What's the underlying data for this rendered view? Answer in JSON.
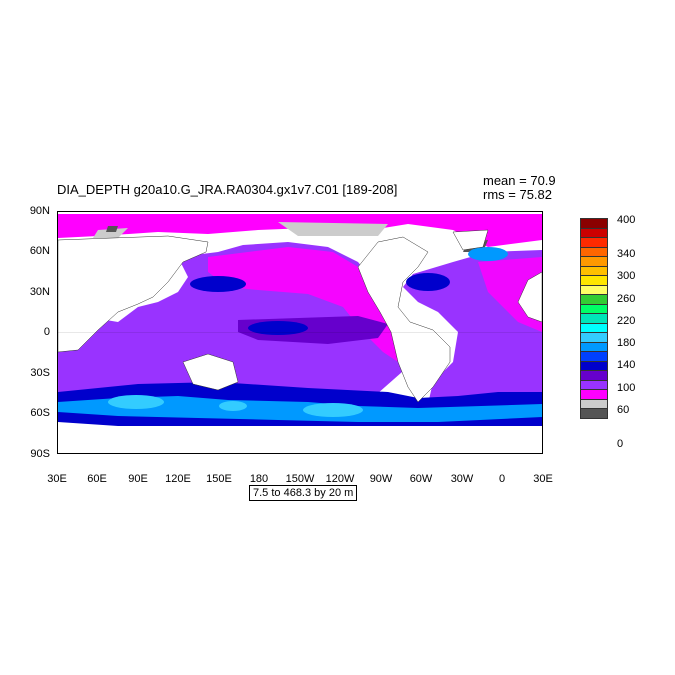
{
  "title": "DIA_DEPTH g20a10.G_JRA.RA0304.gx1v7.C01 [189-208]",
  "stats": {
    "mean": "mean = 70.9",
    "rms": "rms = 75.82"
  },
  "y_ticks": [
    "90N",
    "60N",
    "30N",
    "0",
    "30S",
    "60S",
    "90S"
  ],
  "x_ticks": [
    "30E",
    "60E",
    "90E",
    "120E",
    "150E",
    "180",
    "150W",
    "120W",
    "90W",
    "60W",
    "30W",
    "0",
    "30E"
  ],
  "contour_interval": "7.5 to 468.3 by 20 m",
  "colorbar": {
    "labels": [
      "400",
      "340",
      "300",
      "260",
      "220",
      "180",
      "140",
      "100",
      "60",
      "0"
    ],
    "colors": [
      "#8b0000",
      "#cc0000",
      "#ff2a00",
      "#ff6600",
      "#ff9900",
      "#ffbf00",
      "#ffe600",
      "#ffff66",
      "#33cc33",
      "#00ff66",
      "#00e6b8",
      "#00ffff",
      "#33ccff",
      "#0099ff",
      "#0040ff",
      "#0000cc",
      "#6600cc",
      "#9933ff",
      "#ff00ff",
      "#cccccc",
      "#555555"
    ]
  },
  "colors": {
    "land": "#ffffff",
    "ice": "#cccccc",
    "lowest": "#555555",
    "magenta": "#ff00ff",
    "purple": "#9933ff",
    "deep_purple": "#6600cc",
    "blue": "#0000cc",
    "medium_blue": "#0040ff",
    "light_blue": "#0099ff",
    "cyan": "#33ccff"
  }
}
